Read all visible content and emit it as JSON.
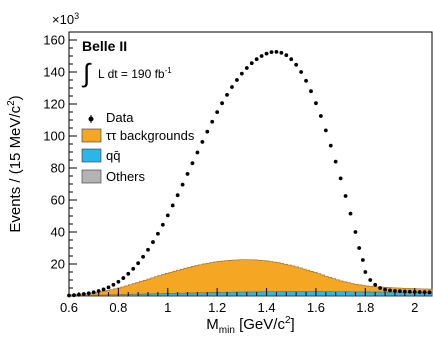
{
  "chart_data": {
    "type": "scatter",
    "xlabel": "M",
    "xlabel_sub": "min",
    "xlabel_units": "[GeV/c",
    "xlabel_units_sup": "2",
    "xlabel_units_end": "]",
    "ylabel": "Events / (15 MeV/c",
    "ylabel_sup": "2",
    "ylabel_end": ")",
    "y_multiplier": "×10",
    "y_multiplier_exp": "3",
    "xlim": [
      0.6,
      2.07
    ],
    "ylim": [
      0,
      165
    ],
    "x_ticks": [
      0.6,
      0.8,
      1.0,
      1.2,
      1.4,
      1.6,
      1.8,
      2.0
    ],
    "x_tick_labels": [
      "0.6",
      "0.8",
      "1",
      "1.2",
      "1.4",
      "1.6",
      "1.8",
      "2"
    ],
    "y_ticks": [
      20,
      40,
      60,
      80,
      100,
      120,
      140,
      160
    ],
    "y_tick_labels": [
      "20",
      "40",
      "60",
      "80",
      "100",
      "120",
      "140",
      "160"
    ],
    "grid": false,
    "annotation": {
      "experiment": "Belle II",
      "integral": "∫",
      "lumi_label": "L dt = 190 fb",
      "lumi_exp": "-1"
    },
    "legend_position": "middle-left",
    "legend": [
      {
        "label": "Data",
        "kind": "marker",
        "color": "#000000"
      },
      {
        "label": "ττ backgrounds",
        "kind": "fill",
        "color": "#f5a623"
      },
      {
        "label": "qq̄",
        "kind": "fill",
        "color": "#29b6e8"
      },
      {
        "label": "Others",
        "kind": "fill",
        "color": "#b3b3b3"
      }
    ],
    "series": [
      {
        "name": "Data",
        "kind": "points",
        "x": [
          0.6,
          0.62,
          0.64,
          0.66,
          0.68,
          0.7,
          0.72,
          0.74,
          0.76,
          0.78,
          0.8,
          0.82,
          0.84,
          0.86,
          0.88,
          0.9,
          0.92,
          0.94,
          0.96,
          0.98,
          1.0,
          1.02,
          1.04,
          1.06,
          1.08,
          1.1,
          1.12,
          1.14,
          1.16,
          1.18,
          1.2,
          1.22,
          1.24,
          1.26,
          1.28,
          1.3,
          1.32,
          1.34,
          1.36,
          1.38,
          1.4,
          1.42,
          1.44,
          1.46,
          1.48,
          1.5,
          1.52,
          1.54,
          1.56,
          1.58,
          1.6,
          1.62,
          1.64,
          1.66,
          1.68,
          1.7,
          1.72,
          1.74,
          1.76,
          1.775,
          1.79,
          1.8,
          1.82,
          1.84,
          1.86,
          1.88,
          1.9,
          1.92,
          1.94,
          1.96,
          1.98,
          2.0,
          2.02,
          2.04,
          2.06
        ],
        "y": [
          0.3,
          0.5,
          0.8,
          1.2,
          1.7,
          2.3,
          3.1,
          4.1,
          5.4,
          7.0,
          8.9,
          11.2,
          13.9,
          17.0,
          20.5,
          24.5,
          28.9,
          33.7,
          38.9,
          44.5,
          50.4,
          56.6,
          63.0,
          69.6,
          76.3,
          83.0,
          89.7,
          96.3,
          102.7,
          108.9,
          114.9,
          120.5,
          125.7,
          130.6,
          135.0,
          139.0,
          142.5,
          145.5,
          148.0,
          150.0,
          151.5,
          152.4,
          152.6,
          152.0,
          150.5,
          148.0,
          144.5,
          140.0,
          134.5,
          128.0,
          120.5,
          112.5,
          103.5,
          94.0,
          84.0,
          73.5,
          62.5,
          51.5,
          40.0,
          30.0,
          22.5,
          15.0,
          10.0,
          7.0,
          5.0,
          4.0,
          3.5,
          3.2,
          3.0,
          2.8,
          2.7,
          2.6,
          2.5,
          2.4,
          2.3
        ]
      },
      {
        "name": "ττ backgrounds",
        "kind": "stack",
        "x": [
          0.6,
          0.65,
          0.7,
          0.75,
          0.8,
          0.85,
          0.9,
          0.95,
          1.0,
          1.05,
          1.1,
          1.15,
          1.2,
          1.25,
          1.3,
          1.35,
          1.4,
          1.45,
          1.5,
          1.55,
          1.6,
          1.65,
          1.7,
          1.75,
          1.8,
          1.85,
          1.9,
          1.95,
          2.0,
          2.07
        ],
        "y": [
          0.5,
          0.8,
          1.5,
          2.5,
          4.0,
          6.0,
          8.2,
          10.5,
          12.7,
          14.7,
          16.5,
          18.0,
          19.2,
          19.9,
          20.2,
          20.0,
          19.3,
          18.0,
          16.3,
          14.2,
          11.8,
          9.2,
          6.8,
          5.0,
          3.8,
          3.2,
          2.8,
          2.5,
          2.3,
          2.1
        ]
      },
      {
        "name": "qq̄",
        "kind": "stack",
        "x": [
          0.6,
          0.7,
          0.8,
          0.9,
          1.0,
          1.1,
          1.2,
          1.3,
          1.4,
          1.5,
          1.6,
          1.7,
          1.8,
          1.9,
          2.0,
          2.07
        ],
        "y": [
          0.2,
          0.4,
          0.7,
          1.0,
          1.3,
          1.6,
          1.9,
          2.1,
          2.3,
          2.4,
          2.4,
          2.3,
          2.2,
          2.1,
          2.0,
          1.9
        ]
      },
      {
        "name": "Others",
        "kind": "stack",
        "x": [
          0.6,
          0.8,
          1.0,
          1.2,
          1.4,
          1.6,
          1.8,
          2.0,
          2.07
        ],
        "y": [
          0.1,
          0.2,
          0.3,
          0.4,
          0.4,
          0.4,
          0.4,
          0.3,
          0.3
        ]
      }
    ]
  }
}
